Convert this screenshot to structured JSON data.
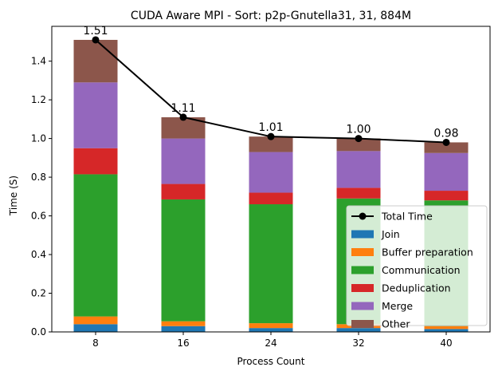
{
  "chart_data": {
    "type": "bar",
    "title": "CUDA Aware MPI - Sort: p2p-Gnutella31, 31, 884M",
    "xlabel": "Process Count",
    "ylabel": "Time (S)",
    "categories": [
      "8",
      "16",
      "24",
      "32",
      "40"
    ],
    "ylim": [
      0,
      1.58
    ],
    "yticks": [
      0.0,
      0.2,
      0.4,
      0.6,
      0.8,
      1.0,
      1.2,
      1.4
    ],
    "ytick_labels": [
      "0.0",
      "0.2",
      "0.4",
      "0.6",
      "0.8",
      "1.0",
      "1.2",
      "1.4"
    ],
    "stacked": true,
    "series": [
      {
        "name": "Join",
        "color": "#1f77b4",
        "values": [
          0.04,
          0.03,
          0.02,
          0.02,
          0.015
        ]
      },
      {
        "name": "Buffer preparation",
        "color": "#ff7f0e",
        "values": [
          0.04,
          0.025,
          0.025,
          0.02,
          0.015
        ]
      },
      {
        "name": "Communication",
        "color": "#2ca02c",
        "values": [
          0.735,
          0.63,
          0.615,
          0.65,
          0.65
        ]
      },
      {
        "name": "Deduplication",
        "color": "#d62728",
        "values": [
          0.135,
          0.08,
          0.06,
          0.055,
          0.05
        ]
      },
      {
        "name": "Merge",
        "color": "#9467bd",
        "values": [
          0.34,
          0.235,
          0.21,
          0.19,
          0.195
        ]
      },
      {
        "name": "Other",
        "color": "#8c564b",
        "values": [
          0.22,
          0.11,
          0.08,
          0.065,
          0.055
        ]
      }
    ],
    "line": {
      "name": "Total Time",
      "color": "#000000",
      "values": [
        1.51,
        1.11,
        1.01,
        1.0,
        0.98
      ],
      "labels": [
        "1.51",
        "1.11",
        "1.01",
        "1.00",
        "0.98"
      ]
    },
    "legend_position": "bottom-right",
    "grid": false
  }
}
